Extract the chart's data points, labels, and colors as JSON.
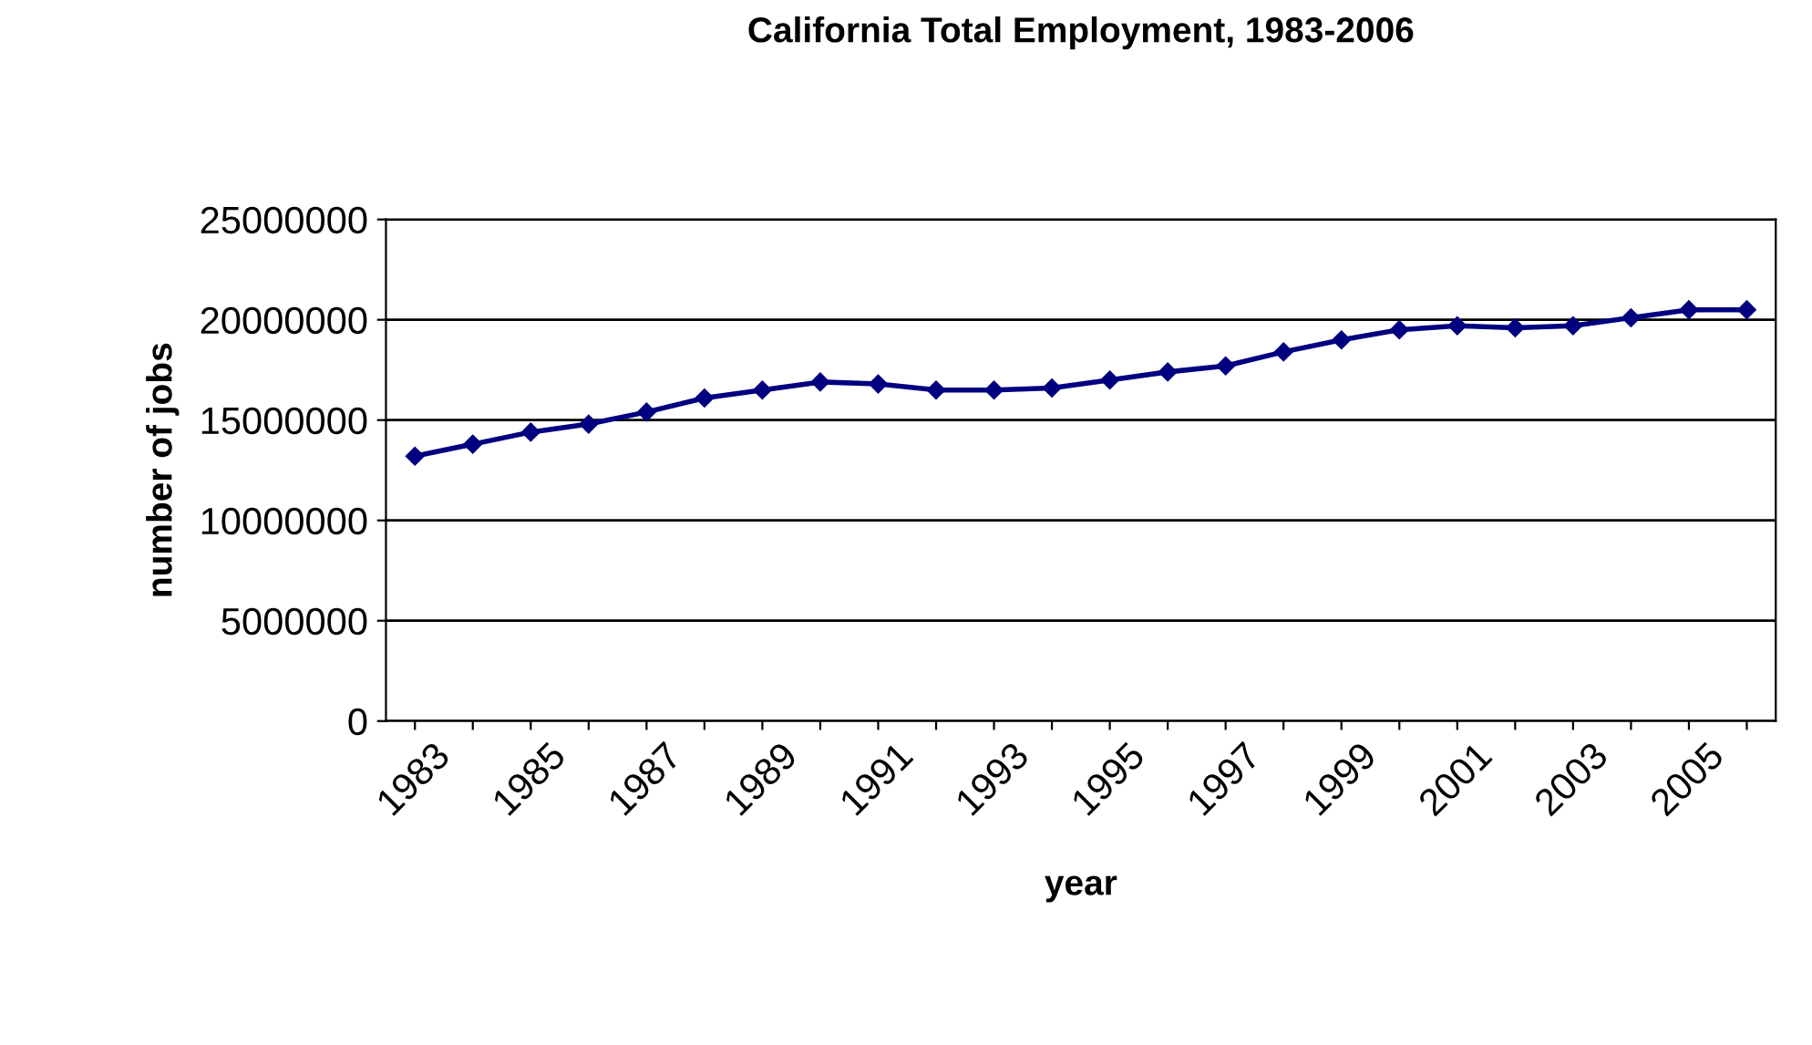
{
  "chart_data": {
    "type": "line",
    "title": "California Total Employment, 1983-2006",
    "xlabel": "year",
    "ylabel": "number of jobs",
    "categories": [
      "1983",
      null,
      "1985",
      null,
      "1987",
      null,
      "1989",
      null,
      "1991",
      null,
      "1993",
      null,
      "1995",
      null,
      "1997",
      null,
      "1999",
      null,
      "2001",
      null,
      "2003",
      null,
      "2005",
      null
    ],
    "series": [
      {
        "color": "#000080",
        "values": [
          13200000,
          13800000,
          14400000,
          14800000,
          15400000,
          16100000,
          16500000,
          16900000,
          16800000,
          16500000,
          16500000,
          16600000,
          17000000,
          17400000,
          17700000,
          18400000,
          19000000,
          19500000,
          19700000,
          19600000,
          19700000,
          20100000,
          20500000,
          20500000
        ]
      }
    ],
    "ylim": [
      0,
      25000000
    ],
    "yticks": [
      0,
      5000000,
      10000000,
      15000000,
      20000000,
      25000000
    ],
    "grid": "y",
    "marker": "diamond",
    "line_style": "solid",
    "legend": false
  }
}
